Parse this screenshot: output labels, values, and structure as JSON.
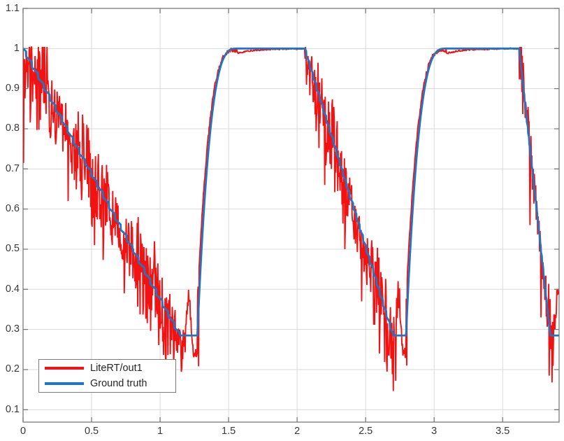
{
  "figure": {
    "background": "#ffffff"
  },
  "chart_data": {
    "type": "line",
    "title": "",
    "xlabel": "",
    "ylabel": "",
    "xlim": [
      0,
      3.912
    ],
    "ylim": [
      0.1,
      1.1
    ],
    "grid": true,
    "x_ticks": [
      0,
      0.5,
      1,
      1.5,
      2,
      2.5,
      3,
      3.5
    ],
    "x_tick_labels": [
      "0",
      "0.5",
      "1",
      "1.5",
      "2",
      "2.5",
      "3",
      "3.5"
    ],
    "y_ticks": [
      0.1,
      0.2,
      0.3,
      0.4,
      0.5,
      0.6,
      0.7,
      0.8,
      0.9,
      1,
      1.1
    ],
    "y_tick_labels": [
      "0.1",
      "0.2",
      "0.3",
      "0.4",
      "0.5",
      "0.6",
      "0.7",
      "0.8",
      "0.9",
      "1",
      "1.1"
    ],
    "axis_color": "#7a7a7a",
    "grid_color": "#d9d9d9",
    "tick_label_color": "#383838",
    "legend": {
      "position": "southwest",
      "border_color": "#7a7a7a",
      "background": "#ffffff"
    },
    "series": [
      {
        "name": "LiteRT/out1",
        "color": "#f31212",
        "line_width": 1.9,
        "role": "prediction-noisy"
      },
      {
        "name": "Ground truth",
        "color": "#1f77c4",
        "line_width": 2.8,
        "role": "ground-truth"
      }
    ],
    "ground_truth_waypoints": [
      [
        0,
        1.0
      ],
      [
        0.5,
        0.688
      ],
      [
        1.0,
        0.376
      ],
      [
        1.145,
        0.285
      ],
      [
        1.272,
        0.285
      ],
      [
        1.35,
        0.734
      ],
      [
        1.45,
        0.963
      ],
      [
        1.565,
        1.0
      ],
      [
        2.055,
        1.0
      ],
      [
        2.3,
        0.737
      ],
      [
        2.5,
        0.522
      ],
      [
        2.7,
        0.285
      ],
      [
        2.795,
        0.285
      ],
      [
        2.9,
        0.825
      ],
      [
        3.0,
        0.965
      ],
      [
        3.09,
        1.0
      ],
      [
        3.62,
        1.0
      ],
      [
        3.73,
        0.655
      ],
      [
        3.848,
        0.285
      ],
      [
        3.912,
        0.285
      ]
    ],
    "segments": [
      {
        "kind": "ramp",
        "x0": 0.0,
        "x1": 1.145,
        "v0": 1.0,
        "v1": 0.285,
        "step": 0.027,
        "noise_amp": 0.13,
        "noise_bias": -0.015
      },
      {
        "kind": "valley",
        "x0": 1.145,
        "x1": 1.272,
        "v": 0.285,
        "noise_amp": 0.09,
        "noise_bias": -0.048
      },
      {
        "kind": "rise",
        "x0": 1.272,
        "x1": 1.565,
        "v0": 0.285,
        "v1": 1.0,
        "noise_amp": 0.006,
        "lead": 0.012
      },
      {
        "kind": "flat_top",
        "x0": 1.565,
        "x1": 2.055,
        "v": 1.0,
        "noise_amp": 0.002,
        "dip": 0.012
      },
      {
        "kind": "ramp",
        "x0": 2.055,
        "x1": 2.7,
        "v0": 1.0,
        "v1": 0.285,
        "step": 0.027,
        "noise_amp": 0.12,
        "noise_bias": -0.02
      },
      {
        "kind": "valley",
        "x0": 2.7,
        "x1": 2.795,
        "v": 0.285,
        "noise_amp": 0.095,
        "noise_bias": -0.052
      },
      {
        "kind": "rise",
        "x0": 2.795,
        "x1": 3.09,
        "v0": 0.285,
        "v1": 1.0,
        "noise_amp": 0.006,
        "lead": 0.012
      },
      {
        "kind": "flat_top",
        "x0": 3.09,
        "x1": 3.62,
        "v": 1.0,
        "noise_amp": 0.002,
        "dip": 0.012
      },
      {
        "kind": "ramp",
        "x0": 3.62,
        "x1": 3.848,
        "v0": 1.0,
        "v1": 0.285,
        "step": 0.027,
        "noise_amp": 0.1,
        "noise_bias": -0.02,
        "lead": -0.006
      },
      {
        "kind": "valley",
        "x0": 3.848,
        "x1": 3.912,
        "v": 0.285,
        "noise_amp": 0.09,
        "noise_bias": -0.048
      }
    ],
    "red_valley_arches": [
      {
        "c": 1.208,
        "w": 0.022,
        "h": 0.145
      },
      {
        "c": 2.742,
        "w": 0.022,
        "h": 0.15
      },
      {
        "c": 3.905,
        "w": 0.03,
        "h": 0.14
      }
    ],
    "red_spikes": [
      [
        0.004,
        0.715
      ],
      [
        0.33,
        0.62
      ],
      [
        0.52,
        0.51
      ],
      [
        0.74,
        0.39
      ],
      [
        1.02,
        0.27
      ],
      [
        1.157,
        0.205
      ],
      [
        1.282,
        0.208
      ],
      [
        2.2,
        0.66
      ],
      [
        2.35,
        0.5
      ],
      [
        2.47,
        0.37
      ],
      [
        2.6,
        0.24
      ],
      [
        2.655,
        0.195
      ],
      [
        2.718,
        0.172
      ],
      [
        2.8,
        0.21
      ],
      [
        3.7,
        0.56
      ],
      [
        3.78,
        0.33
      ],
      [
        3.838,
        0.185
      ],
      [
        3.862,
        0.168
      ]
    ]
  }
}
